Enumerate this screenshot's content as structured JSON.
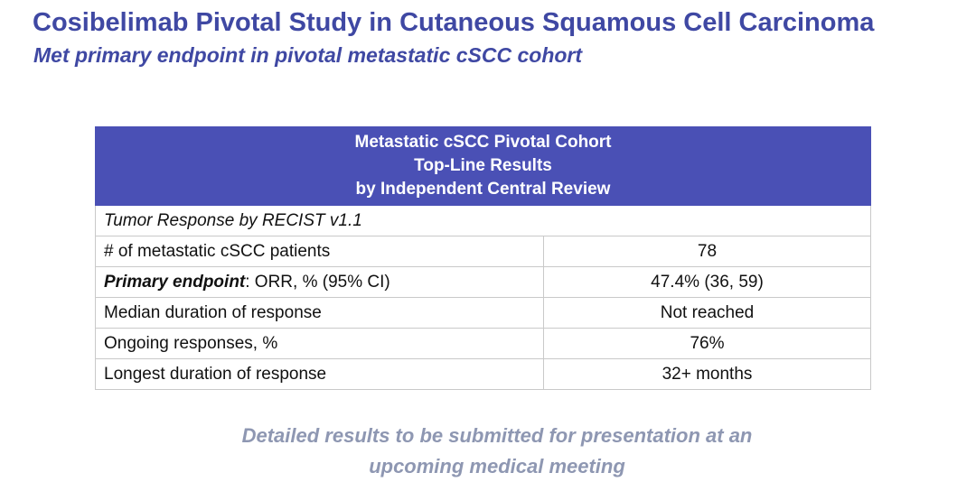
{
  "slide": {
    "title": "Cosibelimab Pivotal Study in Cutaneous Squamous Cell Carcinoma",
    "subtitle": "Met primary endpoint in pivotal metastatic cSCC cohort"
  },
  "table": {
    "header_lines": [
      "Metastatic cSCC Pivotal Cohort",
      "Top-Line Results",
      "by Independent Central Review"
    ],
    "section_label": "Tumor Response by RECIST v1.1",
    "rows": [
      {
        "label": "# of metastatic cSCC patients",
        "value": "78"
      },
      {
        "label_bold": "Primary endpoint",
        "label_rest": ": ORR, % (95% CI)",
        "value": "47.4% (36, 59)"
      },
      {
        "label": "Median duration of response",
        "value": "Not reached"
      },
      {
        "label": "Ongoing responses, %",
        "value": "76%"
      },
      {
        "label": "Longest duration of response",
        "value": "32+ months"
      }
    ]
  },
  "footnote": {
    "lines": [
      "Detailed results to be submitted for presentation at an",
      "upcoming medical meeting"
    ]
  },
  "colors": {
    "title": "#3F48A3",
    "table_header_bg": "#4A50B5",
    "footnote": "#8E97B2"
  }
}
